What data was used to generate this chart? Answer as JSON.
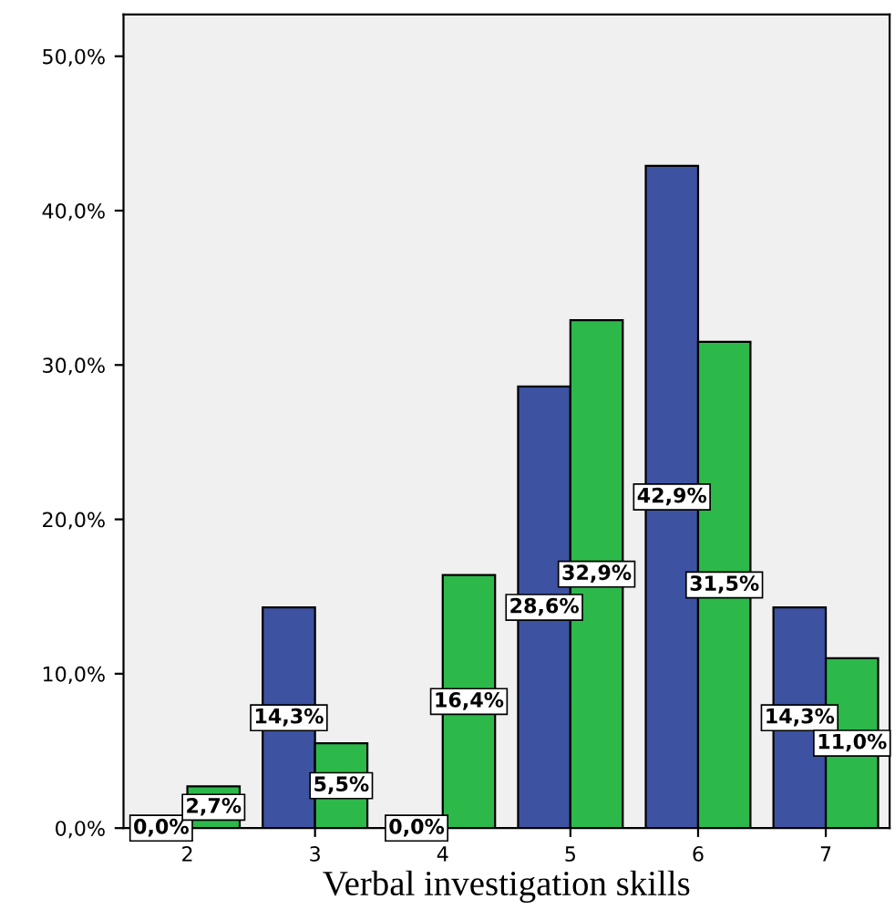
{
  "chart_data": {
    "type": "bar",
    "xlabel": "Verbal investigation skills",
    "categories": [
      "2",
      "3",
      "4",
      "5",
      "6",
      "7"
    ],
    "series": [
      {
        "color": "#3d52a1",
        "values": [
          0.0,
          14.3,
          0.0,
          28.6,
          42.9,
          14.3
        ],
        "value_labels": [
          "0,0%",
          "14,3%",
          "0,0%",
          "28,6%",
          "42,9%",
          "14,3%"
        ]
      },
      {
        "color": "#2db84a",
        "values": [
          2.7,
          5.5,
          16.4,
          32.9,
          31.5,
          11.0
        ],
        "value_labels": [
          "2,7%",
          "5,5%",
          "16,4%",
          "32,9%",
          "31,5%",
          "11,0%"
        ]
      }
    ],
    "ylim": [
      0,
      52.7
    ],
    "yticks": [
      {
        "value": 0,
        "label": "0,0%"
      },
      {
        "value": 10,
        "label": "10,0%"
      },
      {
        "value": 20,
        "label": "20,0%"
      },
      {
        "value": 30,
        "label": "30,0%"
      },
      {
        "value": 40,
        "label": "40,0%"
      },
      {
        "value": 50,
        "label": "50,0%"
      }
    ],
    "grid": false
  }
}
